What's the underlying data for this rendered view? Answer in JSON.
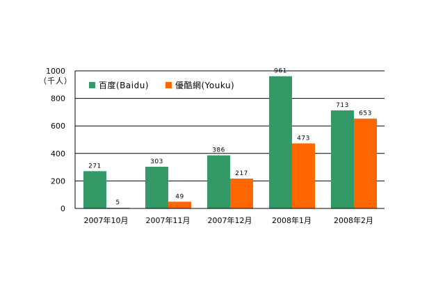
{
  "chart_data": {
    "type": "bar",
    "unit_label": "（千人）",
    "categories": [
      "2007年10月",
      "2007年11月",
      "2007年12月",
      "2008年1月",
      "2008年2月"
    ],
    "series": [
      {
        "name": "百度(Baidu)",
        "color": "#339966",
        "values": [
          271,
          303,
          386,
          961,
          713
        ]
      },
      {
        "name": "優酷網(Youku)",
        "color": "#ff6600",
        "values": [
          5,
          49,
          217,
          473,
          653
        ]
      }
    ],
    "yticks": [
      0,
      200,
      400,
      600,
      800,
      1000
    ],
    "ylim": [
      0,
      1000
    ],
    "grid": true,
    "legend": "top-left"
  }
}
